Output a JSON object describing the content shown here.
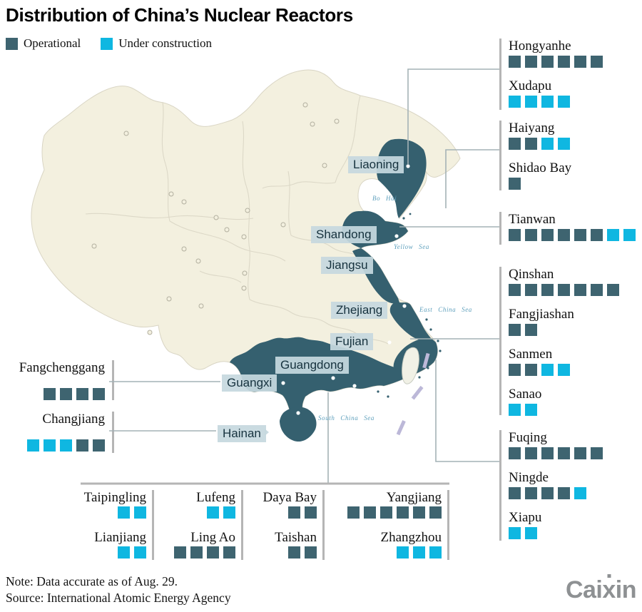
{
  "title": "Distribution of China’s Nuclear Reactors",
  "legend": {
    "operational": "Operational",
    "under_construction": "Under construction"
  },
  "colors": {
    "operational": "#3e6470",
    "under_construction": "#0fb7e1",
    "highlighted_province": "#35606f",
    "land": "#f3f0df",
    "connector": "#a4b2b6",
    "group_bar": "#b5b5b5",
    "chip_background": "#c6d8df",
    "sea_label": "#5d9fbc"
  },
  "map": {
    "provinces": {
      "liaoning": "Liaoning",
      "shandong": "Shandong",
      "jiangsu": "Jiangsu",
      "zhejiang": "Zhejiang",
      "fujian": "Fujian",
      "guangdong": "Guangdong",
      "guangxi": "Guangxi",
      "hainan": "Hainan"
    },
    "seas": {
      "bo_hai": "Bo Hai",
      "yellow_sea": "Yellow Sea",
      "east_china_sea": "East China Sea",
      "south_china_sea": "South China Sea"
    }
  },
  "plants": {
    "hongyanhe": {
      "label": "Hongyanhe",
      "operational": 6,
      "construction": 0
    },
    "xudapu": {
      "label": "Xudapu",
      "operational": 0,
      "construction": 4
    },
    "haiyang": {
      "label": "Haiyang",
      "operational": 2,
      "construction": 2
    },
    "shidao_bay": {
      "label": "Shidao Bay",
      "operational": 1,
      "construction": 0
    },
    "tianwan": {
      "label": "Tianwan",
      "operational": 6,
      "construction": 2
    },
    "qinshan": {
      "label": "Qinshan",
      "operational": 7,
      "construction": 0
    },
    "fangjiashan": {
      "label": "Fangjiashan",
      "operational": 2,
      "construction": 0
    },
    "sanmen": {
      "label": "Sanmen",
      "operational": 2,
      "construction": 2
    },
    "sanao": {
      "label": "Sanao",
      "operational": 0,
      "construction": 2
    },
    "fuqing": {
      "label": "Fuqing",
      "operational": 6,
      "construction": 0
    },
    "ningde": {
      "label": "Ningde",
      "operational": 4,
      "construction": 1
    },
    "xiapu": {
      "label": "Xiapu",
      "operational": 0,
      "construction": 2
    },
    "fangchenggang": {
      "label": "Fangchenggang",
      "operational": 4,
      "construction": 0
    },
    "changjiang": {
      "label": "Changjiang",
      "operational": 2,
      "construction": 3,
      "construction_first": true
    },
    "taipingling": {
      "label": "Taipingling",
      "operational": 0,
      "construction": 2
    },
    "lianjiang": {
      "label": "Lianjiang",
      "operational": 0,
      "construction": 2
    },
    "lufeng": {
      "label": "Lufeng",
      "operational": 0,
      "construction": 2
    },
    "ling_ao": {
      "label": "Ling Ao",
      "operational": 4,
      "construction": 0
    },
    "daya_bay": {
      "label": "Daya Bay",
      "operational": 2,
      "construction": 0
    },
    "taishan": {
      "label": "Taishan",
      "operational": 2,
      "construction": 0
    },
    "yangjiang": {
      "label": "Yangjiang",
      "operational": 6,
      "construction": 0
    },
    "zhangzhou": {
      "label": "Zhangzhou",
      "operational": 0,
      "construction": 3
    }
  },
  "note": "Note: Data accurate as of Aug. 29.",
  "source": "Source: International Atomic Energy Agency",
  "logo": {
    "prefix": "Cai",
    "x": "x",
    "suffix": "in"
  },
  "chart_data": {
    "type": "table",
    "title": "Distribution of China’s Nuclear Reactors",
    "categories": [
      "Hongyanhe",
      "Xudapu",
      "Haiyang",
      "Shidao Bay",
      "Tianwan",
      "Qinshan",
      "Fangjiashan",
      "Sanmen",
      "Sanao",
      "Fuqing",
      "Ningde",
      "Xiapu",
      "Fangchenggang",
      "Changjiang",
      "Taipingling",
      "Lianjiang",
      "Lufeng",
      "Ling Ao",
      "Daya Bay",
      "Taishan",
      "Yangjiang",
      "Zhangzhou"
    ],
    "series": [
      {
        "name": "Operational",
        "values": [
          6,
          0,
          2,
          1,
          6,
          7,
          2,
          2,
          0,
          6,
          4,
          0,
          4,
          2,
          0,
          0,
          0,
          4,
          2,
          2,
          6,
          0
        ]
      },
      {
        "name": "Under construction",
        "values": [
          0,
          4,
          2,
          0,
          2,
          0,
          0,
          2,
          2,
          0,
          1,
          2,
          0,
          3,
          2,
          2,
          2,
          0,
          0,
          0,
          0,
          3
        ]
      }
    ],
    "legend_position": "top-left",
    "unit": "reactor units (1 square = 1 reactor)"
  }
}
